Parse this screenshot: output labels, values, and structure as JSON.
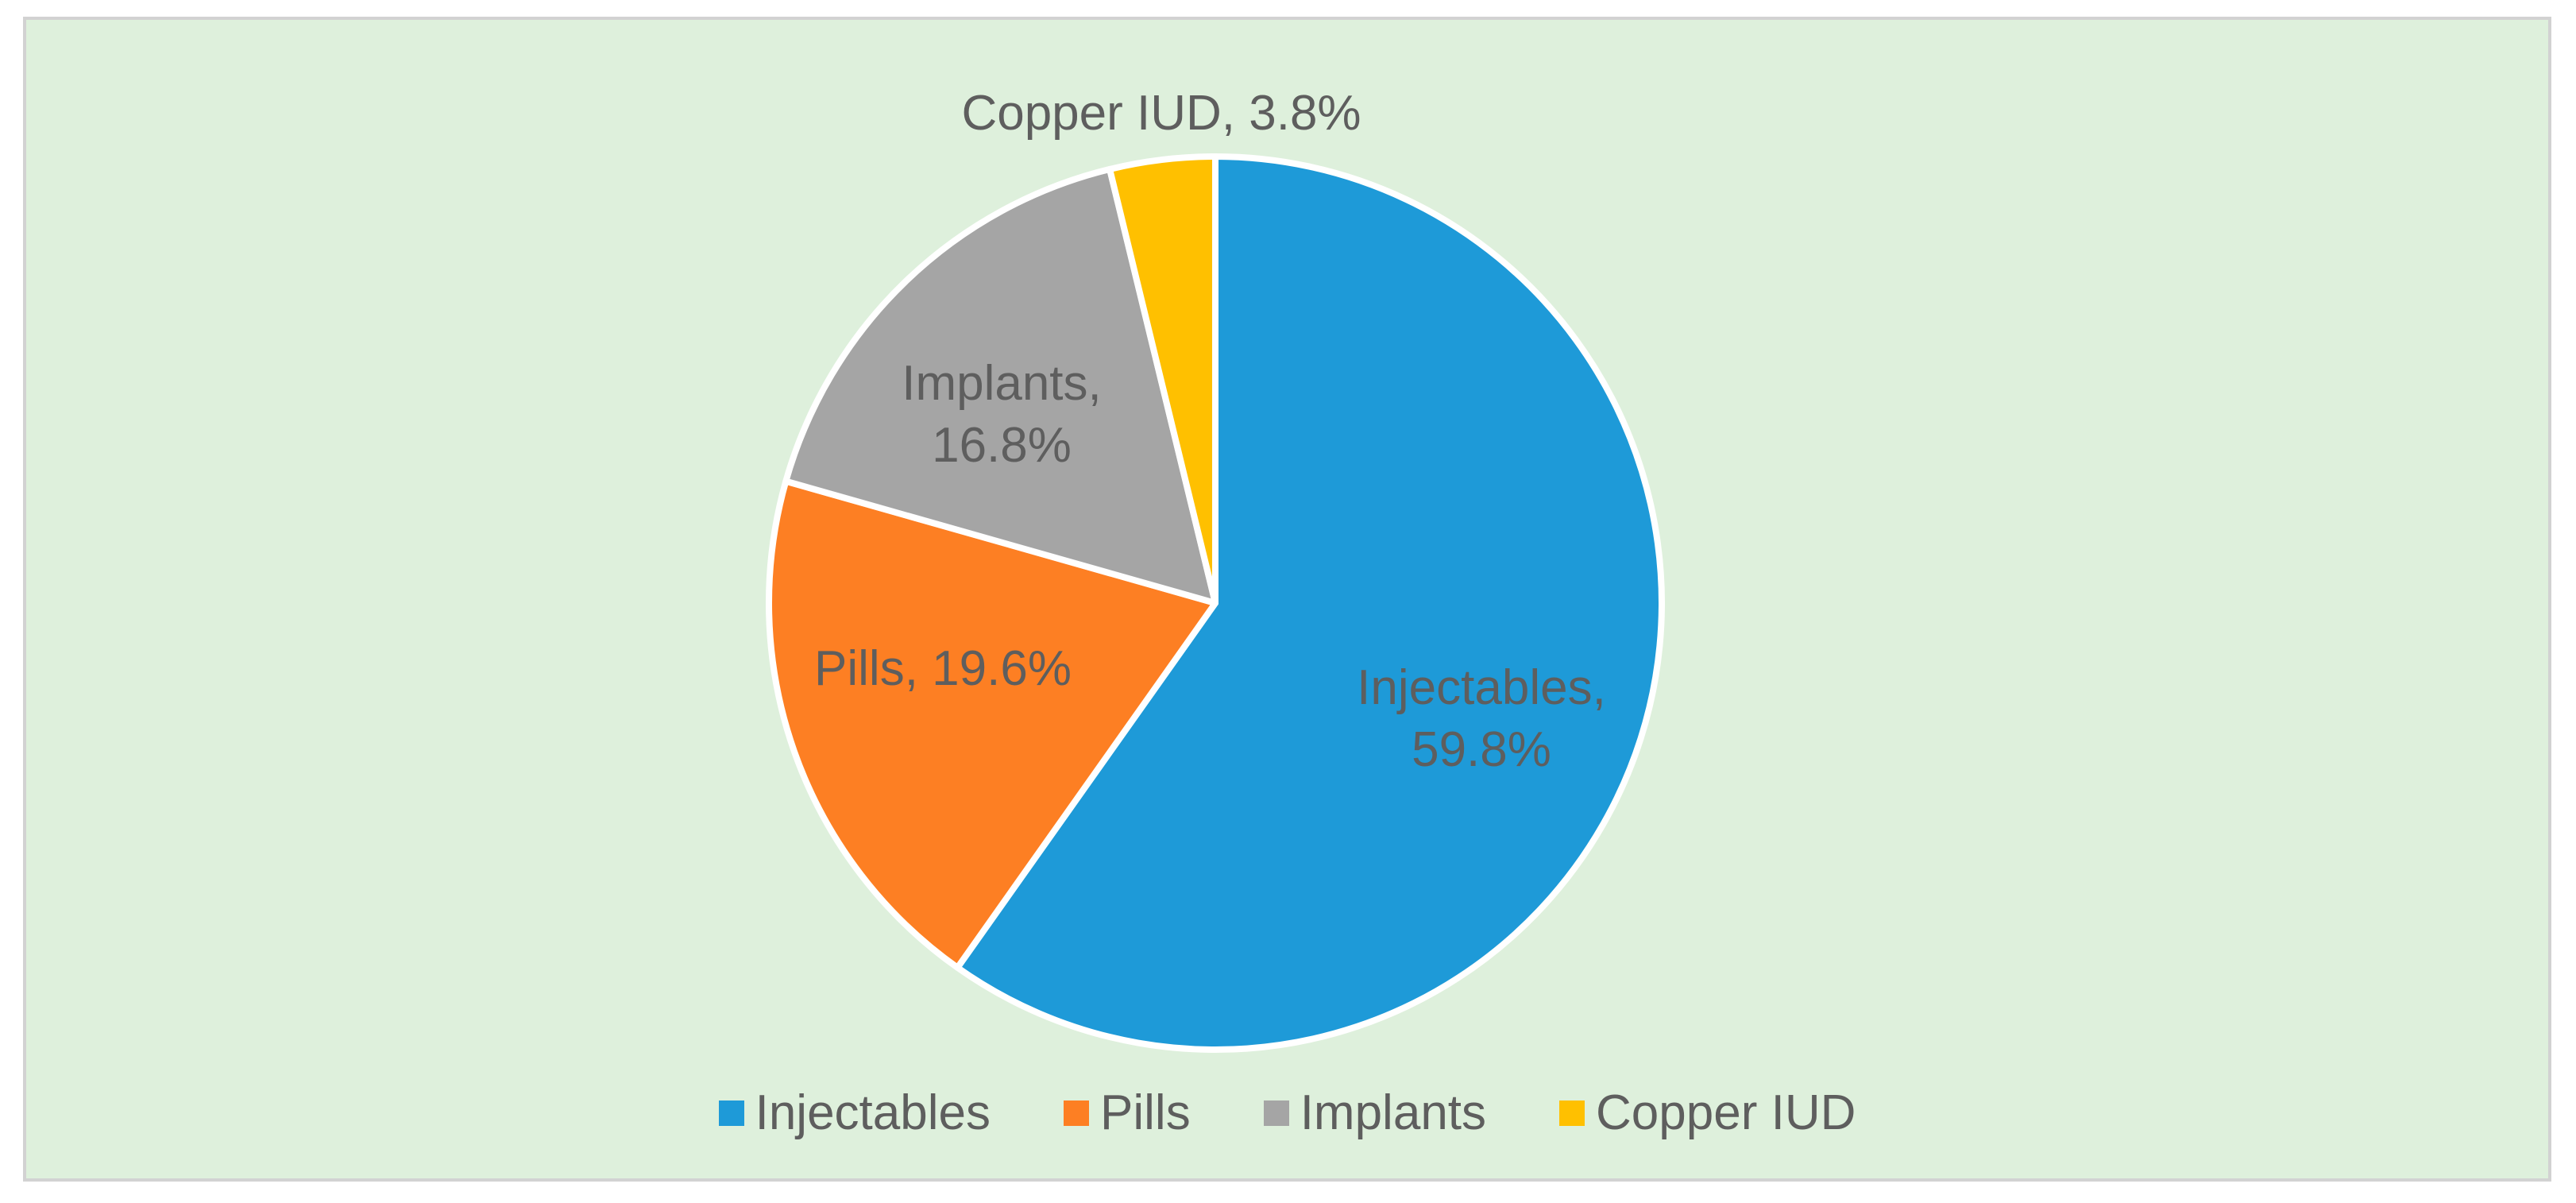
{
  "chart_data": {
    "type": "pie",
    "categories": [
      "Injectables",
      "Pills",
      "Implants",
      "Copper IUD"
    ],
    "values": [
      59.8,
      19.6,
      16.8,
      3.8
    ],
    "value_labels": [
      "Injectables, 59.8%",
      "Pills, 19.6%",
      "Implants, 16.8%",
      "Copper IUD, 3.8%"
    ],
    "colors": [
      "#1e9ad8",
      "#fd7f23",
      "#a5a5a5",
      "#ffc000"
    ],
    "legend": "bottom"
  }
}
